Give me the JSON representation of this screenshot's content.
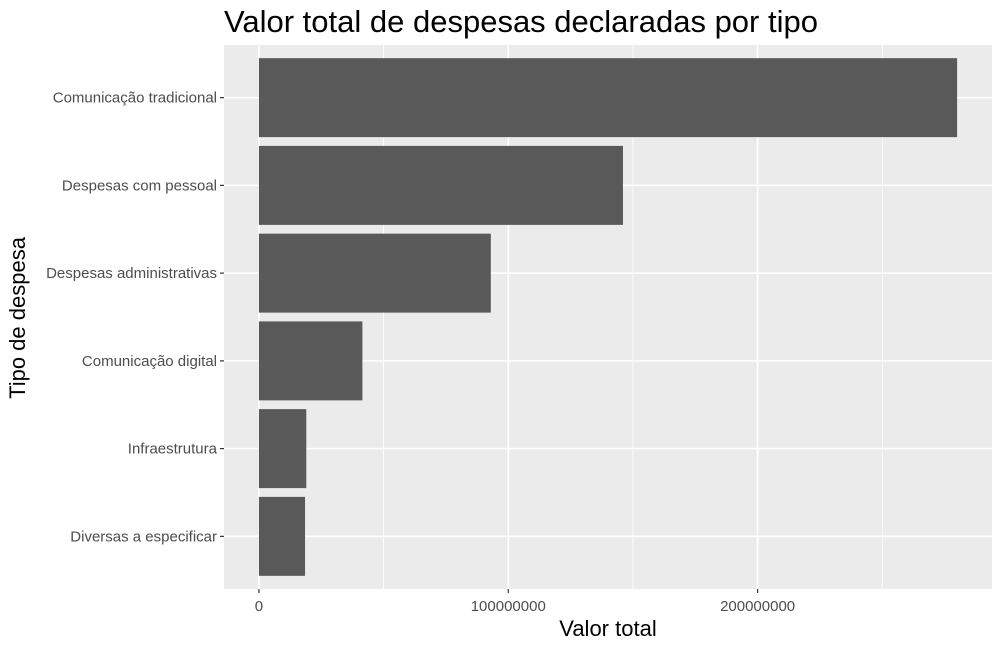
{
  "chart_data": {
    "type": "bar",
    "orientation": "horizontal",
    "title": "Valor total de despesas declaradas por tipo",
    "xlabel": "Valor total",
    "ylabel": "Tipo de despesa",
    "categories": [
      "Comunicação tradicional",
      "Despesas com pessoal",
      "Despesas administrativas",
      "Comunicação digital",
      "Infraestrutura",
      "Diversas a especificar"
    ],
    "values": [
      280000000,
      146000000,
      93000000,
      41500000,
      19000000,
      18500000
    ],
    "xlim": [
      -14000000,
      294000000
    ],
    "x_ticks": [
      0,
      100000000,
      200000000
    ],
    "x_tick_labels": [
      "0",
      "100000000",
      "200000000"
    ],
    "grid": true,
    "legend": "none"
  },
  "colors": {
    "panel_background": "#ebebeb",
    "grid_line": "#ffffff",
    "bar_fill": "#595959",
    "tick_text": "#4d4d4d",
    "title_text": "#000000"
  }
}
